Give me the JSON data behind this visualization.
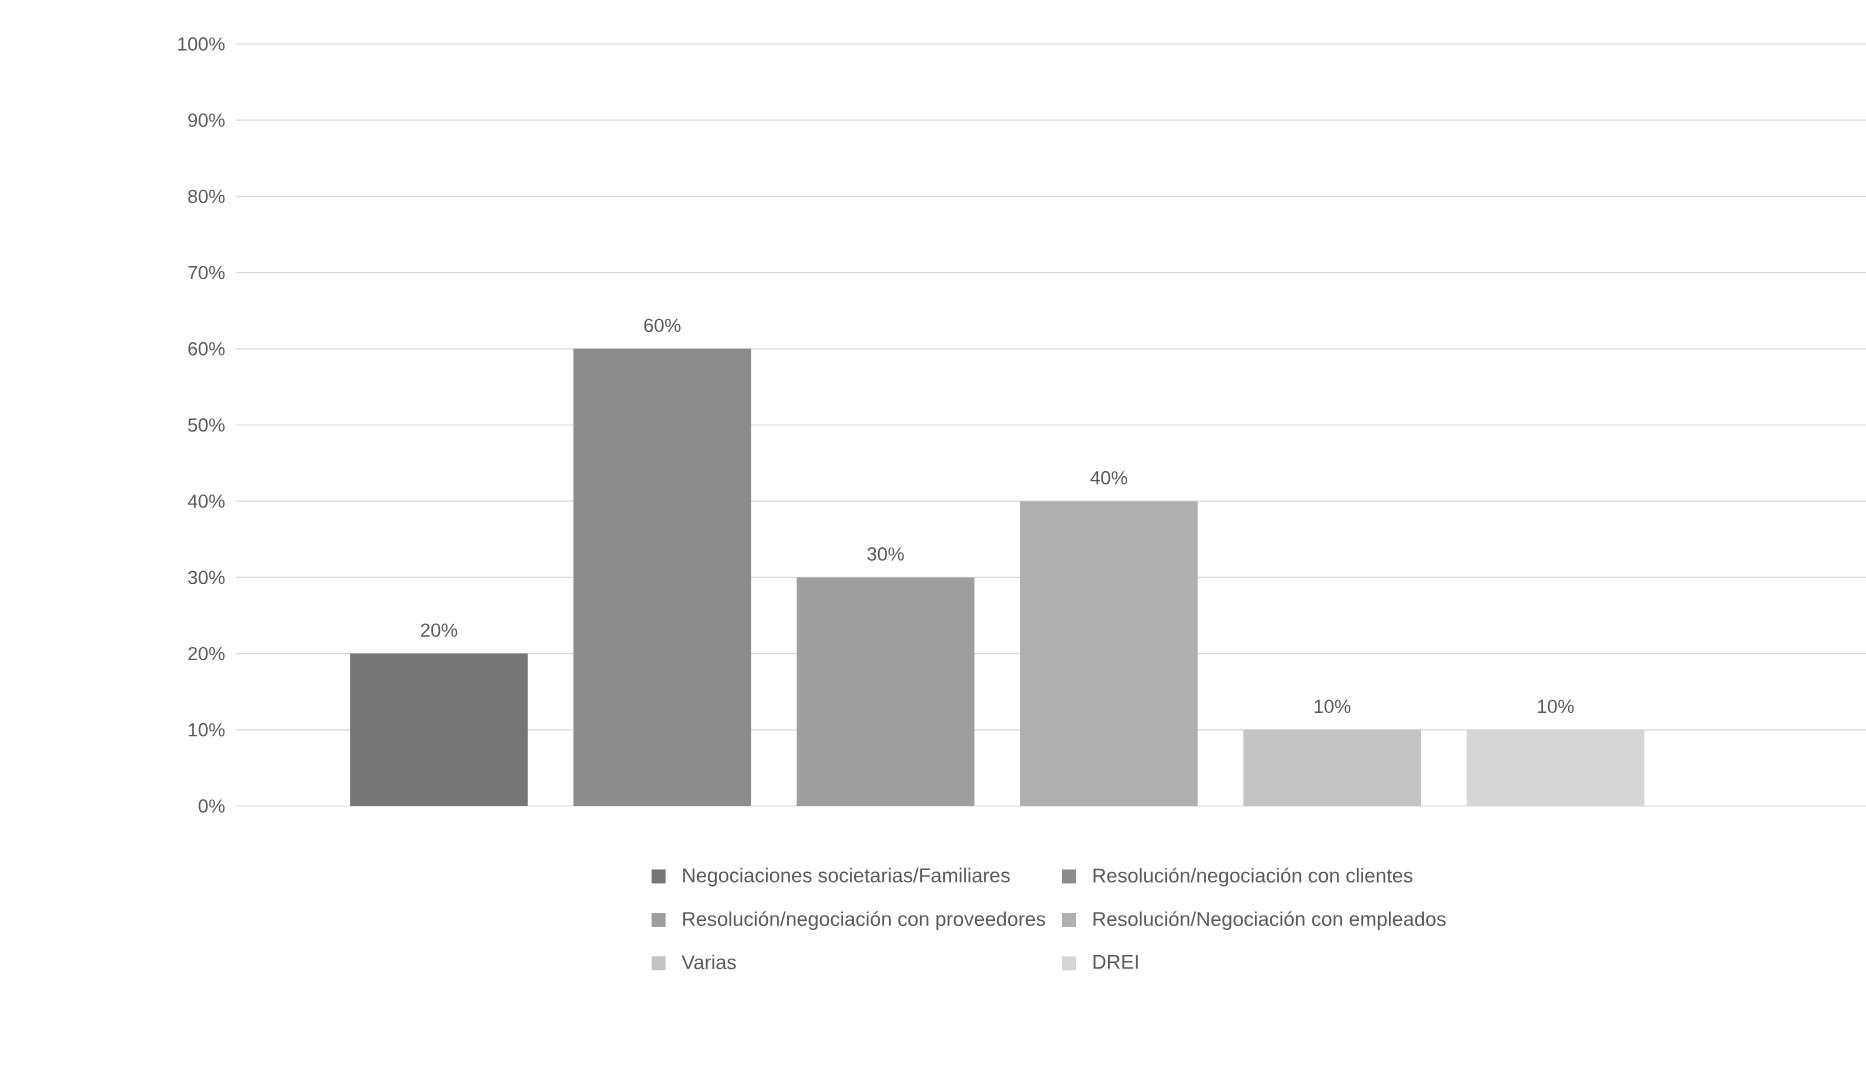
{
  "chart_data": {
    "type": "bar",
    "categories": [
      null
    ],
    "series": [
      {
        "name": "Negociaciones societarias/Familiares",
        "color": "#767676",
        "values": [
          20
        ],
        "value_labels": [
          "20%"
        ]
      },
      {
        "name": "Resolución/negociación con clientes",
        "color": "#8c8c8c",
        "values": [
          60
        ],
        "value_labels": [
          "60%"
        ]
      },
      {
        "name": "Resolución/negociación con proveedores",
        "color": "#9e9e9e",
        "values": [
          30
        ],
        "value_labels": [
          "30%"
        ]
      },
      {
        "name": "Resolución/Negociación con empleados",
        "color": "#afafaf",
        "values": [
          40
        ],
        "value_labels": [
          "40%"
        ]
      },
      {
        "name": "Varias",
        "color": "#c4c4c4",
        "values": [
          10
        ],
        "value_labels": [
          "10%"
        ]
      },
      {
        "name": "DREI",
        "color": "#d6d6d6",
        "values": [
          10
        ],
        "value_labels": [
          "10%"
        ]
      }
    ],
    "ylim": [
      0,
      100
    ],
    "yticks": [
      {
        "value": 0,
        "label": "0%"
      },
      {
        "value": 10,
        "label": "10%"
      },
      {
        "value": 20,
        "label": "20%"
      },
      {
        "value": 30,
        "label": "30%"
      },
      {
        "value": 40,
        "label": "40%"
      },
      {
        "value": 50,
        "label": "50%"
      },
      {
        "value": 60,
        "label": "60%"
      },
      {
        "value": 70,
        "label": "70%"
      },
      {
        "value": 80,
        "label": "80%"
      },
      {
        "value": 90,
        "label": "90%"
      },
      {
        "value": 100,
        "label": "100%"
      }
    ],
    "grid": "y",
    "legend": "bottom"
  }
}
